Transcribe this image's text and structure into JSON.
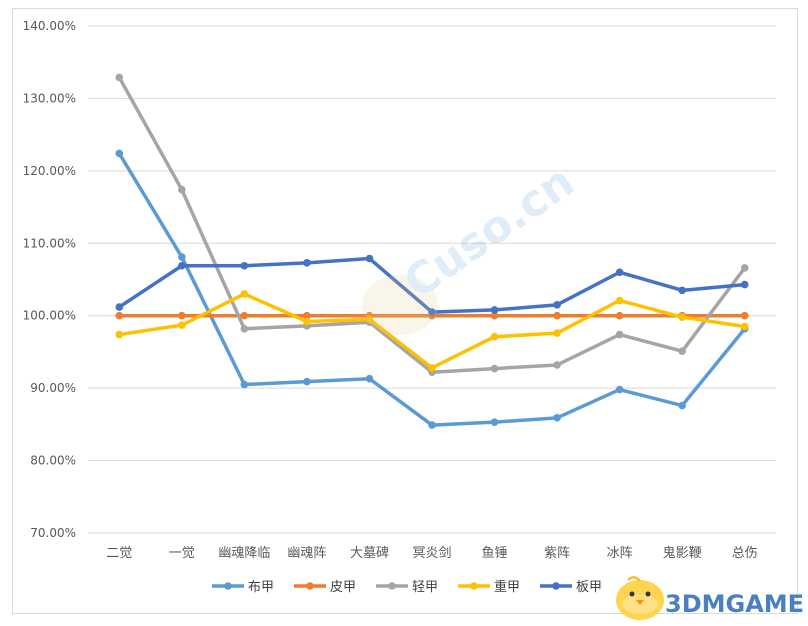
{
  "chart_data": {
    "type": "line",
    "categories": [
      "二觉",
      "一觉",
      "幽魂降临",
      "幽魂阵",
      "大墓碑",
      "冥炎剑",
      "鱼锤",
      "紫阵",
      "冰阵",
      "鬼影鞭",
      "总伤"
    ],
    "y_ticks": [
      "70.00%",
      "80.00%",
      "90.00%",
      "100.00%",
      "110.00%",
      "120.00%",
      "130.00%",
      "140.00%"
    ],
    "ylim": [
      70,
      140
    ],
    "grid": "horizontal",
    "legend_position": "bottom",
    "series": [
      {
        "name": "布甲",
        "color": "#5b9bd5",
        "values": [
          122.4,
          108.1,
          90.5,
          90.9,
          91.3,
          84.9,
          85.3,
          85.9,
          89.8,
          87.6,
          98.2
        ]
      },
      {
        "name": "皮甲",
        "color": "#ed7d31",
        "values": [
          100,
          100,
          100,
          100,
          100,
          100,
          100,
          100,
          100,
          100,
          100
        ]
      },
      {
        "name": "轻甲",
        "color": "#a5a5a5",
        "values": [
          132.9,
          117.4,
          98.2,
          98.6,
          99.1,
          92.2,
          92.7,
          93.2,
          97.4,
          95.1,
          106.6
        ]
      },
      {
        "name": "重甲",
        "color": "#ffc000",
        "values": [
          97.4,
          98.7,
          103.0,
          99.2,
          99.5,
          92.8,
          97.1,
          97.6,
          102.1,
          99.8,
          98.5
        ]
      },
      {
        "name": "板甲",
        "color": "#4472c4",
        "values": [
          101.2,
          106.9,
          106.9,
          107.3,
          107.9,
          100.5,
          100.8,
          101.5,
          106.0,
          103.5,
          104.3
        ]
      }
    ]
  },
  "watermark": {
    "text": "3DMGAME",
    "icon": "chick-mascot-icon"
  }
}
